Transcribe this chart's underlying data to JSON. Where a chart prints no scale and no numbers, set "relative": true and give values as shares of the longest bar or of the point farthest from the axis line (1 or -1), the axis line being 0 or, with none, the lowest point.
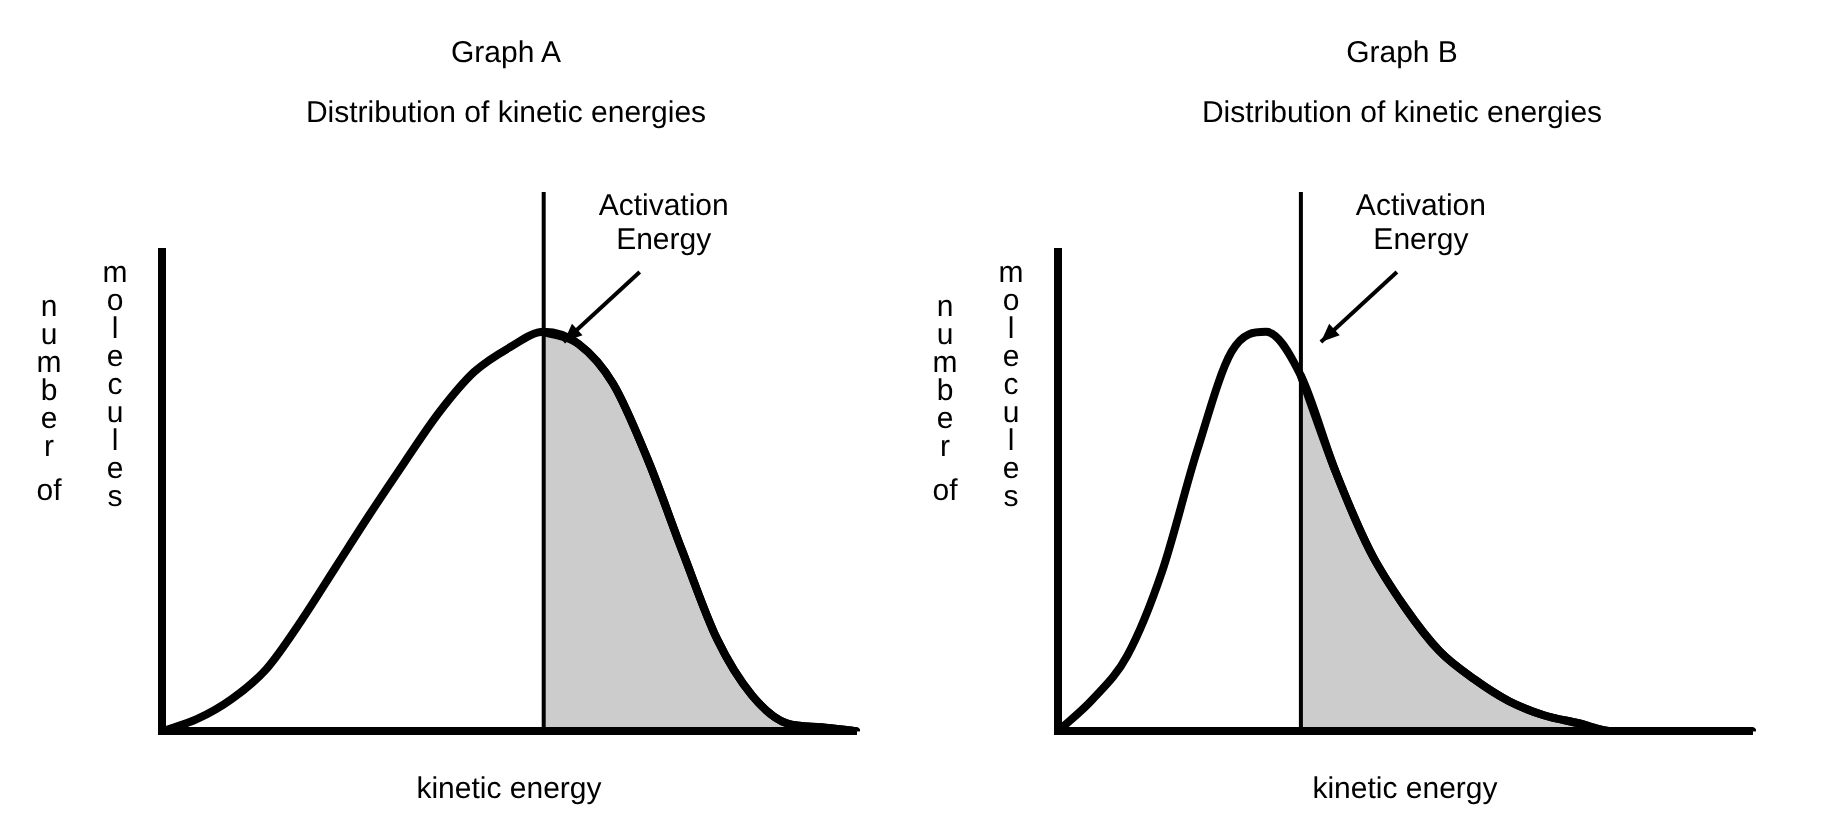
{
  "chart_data": [
    {
      "type": "line",
      "title": "Graph A",
      "subtitle": "Distribution of kinetic energies",
      "xlabel": "kinetic energy",
      "ylabel": "number of molecules",
      "relative": true,
      "marker": "none",
      "line_style": "solid",
      "categories": [
        null,
        null,
        null,
        null,
        null,
        null,
        null,
        null,
        null,
        null,
        null,
        null,
        null,
        null,
        null,
        null,
        null,
        null,
        null,
        null,
        null
      ],
      "series": [
        {
          "color": "#000000",
          "values": [
            0,
            0.03,
            0.08,
            0.155,
            0.275,
            0.41,
            0.545,
            0.675,
            0.8,
            0.9,
            0.96,
            1,
            0.97,
            0.87,
            0.68,
            0.45,
            0.23,
            0.09,
            0.02,
            0.01,
            0
          ]
        },
        {
          "type": "area",
          "color": "#000000",
          "values": [
            null,
            null,
            null,
            null,
            null,
            null,
            null,
            null,
            null,
            null,
            null,
            1,
            0.97,
            0.87,
            0.68,
            0.45,
            0.23,
            0.09,
            0.02,
            0.01,
            0
          ]
        }
      ],
      "annotations": [
        "Activation Energy"
      ]
    },
    {
      "type": "line",
      "title": "Graph B",
      "subtitle": "Distribution of kinetic energies",
      "xlabel": "kinetic energy",
      "ylabel": "number of molecules",
      "relative": true,
      "marker": "none",
      "line_style": "solid",
      "categories": [
        null,
        null,
        null,
        null,
        null,
        null,
        null,
        null,
        null,
        null,
        null,
        null,
        null,
        null,
        null,
        null,
        null,
        null,
        null,
        null,
        null
      ],
      "series": [
        {
          "color": "#000000",
          "values": [
            0,
            0.08,
            0.19,
            0.4,
            0.7,
            0.95,
            1,
            0.89,
            0.65,
            0.45,
            0.31,
            0.2,
            0.13,
            0.075,
            0.04,
            0.02,
            0,
            0,
            0,
            0,
            0
          ]
        },
        {
          "type": "area",
          "color": "#000000",
          "values": [
            null,
            null,
            null,
            null,
            null,
            null,
            null,
            0.89,
            0.65,
            0.45,
            0.31,
            0.2,
            0.13,
            0.075,
            0.04,
            0.02,
            0,
            0,
            0,
            0,
            0
          ]
        }
      ],
      "annotations": [
        "Activation Energy"
      ]
    }
  ]
}
